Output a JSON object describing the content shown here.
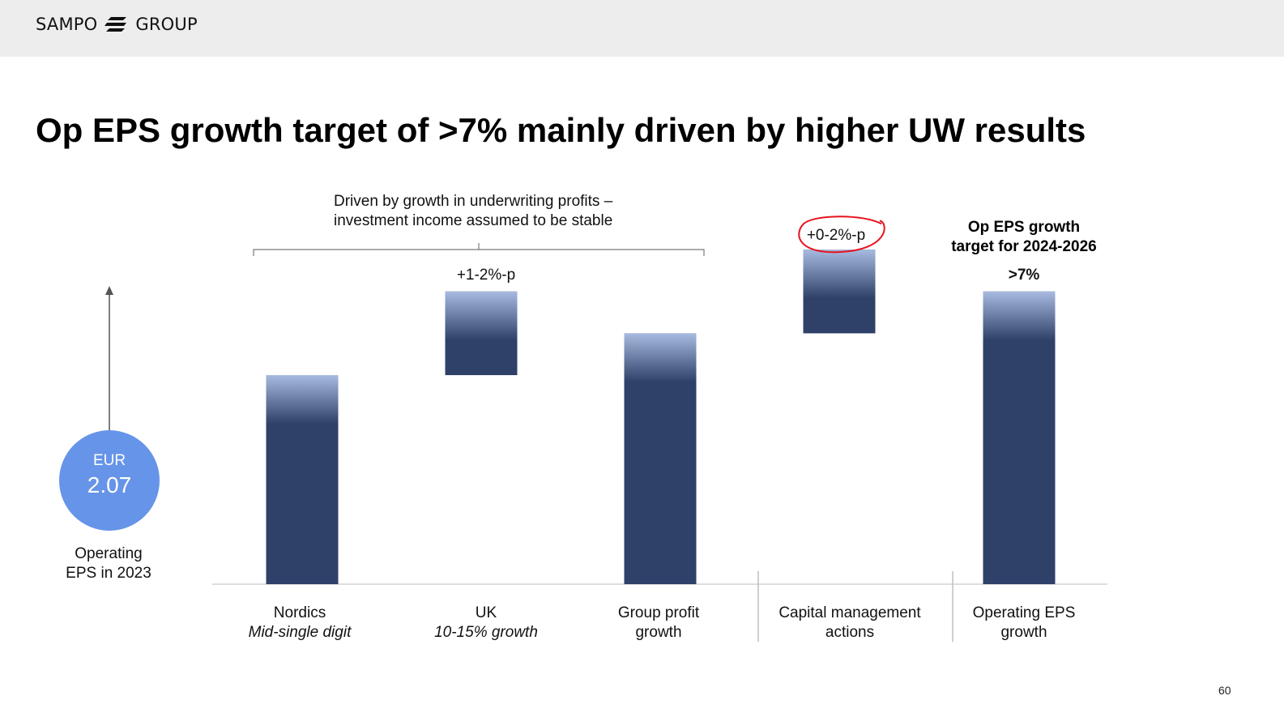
{
  "header": {
    "logo_left": "SAMPO",
    "logo_right": "GROUP",
    "logo_icon": "sampo-s-icon"
  },
  "title": "Op EPS growth target of >7% mainly driven by higher UW results",
  "page_number": "60",
  "eps_base": {
    "currency": "EUR",
    "value": "2.07",
    "label_line1": "Operating",
    "label_line2": "EPS in 2023"
  },
  "bracket_note": {
    "line1": "Driven by growth in underwriting profits –",
    "line2": "investment income assumed to be stable"
  },
  "target_note": {
    "line1": "Op EPS growth",
    "line2": "target for 2024-2026"
  },
  "colors": {
    "bar_dark": "#2f4169",
    "bar_light": "#a7bae0",
    "circle": "#6694e8",
    "annotation_circle": "#e8121b",
    "axis": "#d4d4d4"
  },
  "chart_data": {
    "type": "waterfall",
    "categories": [
      {
        "line1": "Nordics",
        "line2": "Mid-single digit",
        "line2_italic": true
      },
      {
        "line1": "UK",
        "line2": "10-15% growth",
        "line2_italic": true
      },
      {
        "line1": "Group profit",
        "line2": "growth",
        "line2_italic": false
      },
      {
        "line1": "Capital management",
        "line2": "actions",
        "line2_italic": false
      },
      {
        "line1": "Operating EPS",
        "line2": "growth",
        "line2_italic": false
      }
    ],
    "bars": [
      {
        "kind": "total",
        "start": 0,
        "end": 5,
        "label": ""
      },
      {
        "kind": "increment",
        "start": 5,
        "end": 7,
        "label": "+1-2%-p"
      },
      {
        "kind": "total",
        "start": 0,
        "end": 6,
        "label": ""
      },
      {
        "kind": "increment",
        "start": 6,
        "end": 8,
        "label": "+0-2%-p",
        "circled": true
      },
      {
        "kind": "total",
        "start": 0,
        "end": 7,
        "label": ">7%",
        "label_bold": true
      }
    ],
    "ylim": [
      0,
      8
    ],
    "grid": false
  }
}
